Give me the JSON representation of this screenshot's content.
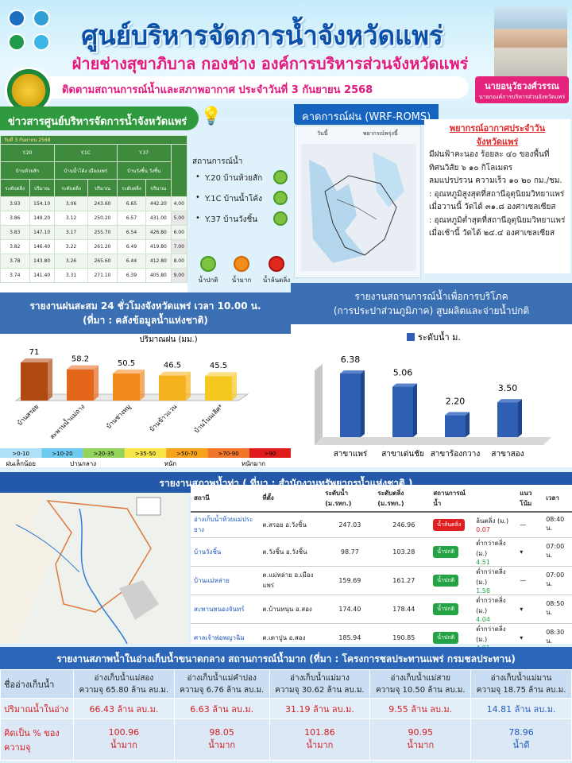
{
  "header": {
    "title": "ศูนย์บริหารจัดการน้ำจังหวัดแพร่",
    "subtitle": "ฝ่ายช่างสุขาภิบาล กองช่าง องค์การบริหารส่วนจังหวัดแพร่",
    "date_line": "ติดตามสถานการณ์น้ำและสภาพอากาศ ประจำวันที่ 3 กันยายน 2568",
    "person_name": "นายอนุวัธวงศ์วรรณ",
    "person_title": "นายกองค์การบริหารส่วนจังหวัดแพร่"
  },
  "news": {
    "header": "ข่าวสารศูนย์บริหารจัดการน้ำจังหวัดแพร่",
    "table_date": "วันที่ 3 กันยายน 2568",
    "columns": [
      "Y.20",
      "Y.1C",
      "Y.37"
    ],
    "col_names": [
      "บ้านห้วยสัก",
      "บ้านน้ำโค้ง เมืองแพร่",
      "บ้านวังชิ้น วังชิ้น"
    ],
    "sub_headers": [
      "ระดับตลิ่ง",
      "ปริมาณ",
      "ระดับตลิ่ง",
      "ปริมาณ",
      "ระดับตลิ่ง",
      "ปริมาณ"
    ],
    "rows": [
      [
        "3.93",
        "154.10",
        "3.06",
        "243.60",
        "6.65",
        "442.20",
        "4.00"
      ],
      [
        "3.86",
        "149.20",
        "3.12",
        "250.20",
        "6.57",
        "431.00",
        "5.00"
      ],
      [
        "3.83",
        "147.10",
        "3.17",
        "255.70",
        "6.54",
        "426.80",
        "6.00"
      ],
      [
        "3.82",
        "146.40",
        "3.22",
        "261.20",
        "6.49",
        "419.80",
        "7.00"
      ],
      [
        "3.78",
        "143.80",
        "3.26",
        "265.60",
        "6.44",
        "412.80",
        "8.00"
      ],
      [
        "3.74",
        "141.40",
        "3.31",
        "271.10",
        "6.39",
        "405.80",
        "9.00"
      ]
    ]
  },
  "status": {
    "header": "สถานการณ์น้ำ",
    "items": [
      {
        "label": "Y.20 บ้านห้วยสัก",
        "color": "#7fc241"
      },
      {
        "label": "Y.1C บ้านน้ำโค้ง",
        "color": "#7fc241"
      },
      {
        "label": "Y.37 บ้านวังชิ้น",
        "color": "#7fc241"
      }
    ],
    "legend": [
      {
        "label": "น้ำปกติ",
        "color": "#7fc241"
      },
      {
        "label": "น้ำมาก",
        "color": "#f28c1c"
      },
      {
        "label": "น้ำล้นตลิ่ง",
        "color": "#e0281e"
      }
    ]
  },
  "wrf": {
    "header": "คาดการณ์ฝน (WRF-ROMS)",
    "tab1": "วันนี้",
    "tab2": "พยากรณ์พรุ่งนี้"
  },
  "forecast": {
    "title1": "พยากรณ์อากาศประจำวัน",
    "title2": "จังหวัดแพร่",
    "lines": [
      "มีฝนฟ้าคะนอง ร้อยละ ๔๐ ของพื้นที่",
      "ทิศนวิสัย ๖ ๑๐ กิโลเมตร",
      "ลมแปรปรวน ความเร็ว ๑๐ ๒๐ กม./ชม.",
      ": อุณหภูมิสูงสุดที่สถานีอุตุนิยมวิทยาแพร่",
      "เมื่อวานนี้ วัดได้ ๓๑.๘ องศาเซลเซียส",
      ": อุณหภูมิต่ำสุดที่สถานีอุตุนิยมวิทยาแพร่",
      "เมื่อเช้านี้ วัดได้ ๒๔.๔ องศาเซลเซียส"
    ]
  },
  "rain": {
    "header1": "รายงานฝนสะสม 24 ชั่วโมงจังหวัดแพร่ เวลา 10.00 น.",
    "header2": "(ที่มา : คลังข้อมูลน้ำแห่งชาติ)",
    "scale": [
      {
        "label": ">0-10",
        "color": "#aee0f7"
      },
      {
        "label": ">10-20",
        "color": "#6fcaf0"
      },
      {
        "label": ">20-35",
        "color": "#93d35b"
      },
      {
        "label": ">35-50",
        "color": "#f8e548"
      },
      {
        "label": ">50-70",
        "color": "#f7a21c"
      },
      {
        "label": ">70-90",
        "color": "#f0762a"
      },
      {
        "label": ">90",
        "color": "#e01b1b"
      }
    ],
    "scale_words": [
      "ฝนเล็กน้อย",
      "ปานกลาง",
      "หนัก",
      "หนักมาก"
    ]
  },
  "usage": {
    "header1": "รายงานสถานการณ์น้ำเพื่อการบริโภค",
    "header2": "(การประปาส่วนภูมิภาค) สูบผลิตและจ่ายน้ำปกติ"
  },
  "chart_data": [
    {
      "type": "bar",
      "title": "ปริมาณฝน (มม.)",
      "categories": [
        "บ้านสรอย",
        "สะพานน้ำแม่ถาง",
        "บ้านช่างหมู",
        "บ้านข้าวแวน",
        "บ้านโนนเลิศ*"
      ],
      "values": [
        71,
        58.2,
        50.5,
        46.5,
        45.5
      ],
      "colors": [
        "#b14a12",
        "#e3661a",
        "#f2891c",
        "#f5b21e",
        "#f5c81e"
      ]
    },
    {
      "type": "bar",
      "legend": "ระดับน้ำ ม.",
      "categories": [
        "สาขาแพร่",
        "สาขาเด่นชัย",
        "สาขาร้องกวาง",
        "สาขาสอง"
      ],
      "values": [
        6.38,
        5.06,
        2.2,
        3.5
      ],
      "value_labels": [
        "6.38",
        "5.06",
        "2.20",
        "3.50"
      ],
      "color": "#2e5fb3"
    }
  ],
  "river": {
    "header": "รายงานสภาพน้ำท่า ( ที่มา : สำนักงานทรัพยากรน้ำแห่งชาติ )",
    "cols": [
      "สถานี",
      "ที่ตั้ง",
      "ระดับน้ำ (ม.รทก.)",
      "ระดับตลิ่ง (ม.รทก.)",
      "สถานการณ์น้ำ",
      "",
      "แนวโน้ม",
      "เวลา"
    ],
    "rows": [
      {
        "station": "อ่างเก็บน้ำห้วยแม่ประยาง",
        "loc": "ต.สรอย อ.วังชิ้น",
        "level": "247.03",
        "bank": "246.96",
        "status": "น้ำล้นตลิ่ง",
        "status_type": "red",
        "diff_label": "ล้นตลิ่ง (ม.)",
        "diff": "0.07",
        "diff_type": "tr1",
        "trend": "—",
        "time": "08:40 น."
      },
      {
        "station": "บ้านวังชิ้น",
        "loc": "ต.วังชิ้น อ.วังชิ้น",
        "level": "98.77",
        "bank": "103.28",
        "status": "น้ำปกติ",
        "status_type": "green",
        "diff_label": "ต่ำกว่าตลิ่ง (ม.)",
        "diff": "4.51",
        "diff_type": "tr2",
        "trend": "▾",
        "time": "07:00 น."
      },
      {
        "station": "บ้านแม่หล่าย",
        "loc": "ต.แม่หล่าย อ.เมืองแพร่",
        "level": "159.69",
        "bank": "161.27",
        "status": "น้ำปกติ",
        "status_type": "green",
        "diff_label": "ต่ำกว่าตลิ่ง (ม.)",
        "diff": "1.58",
        "diff_type": "tr2",
        "trend": "—",
        "time": "07:00 น."
      },
      {
        "station": "สะพานหนองจันทร์",
        "loc": "ต.บ้านหนุน อ.สอง",
        "level": "174.40",
        "bank": "178.44",
        "status": "น้ำปกติ",
        "status_type": "green",
        "diff_label": "ต่ำกว่าตลิ่ง (ม.)",
        "diff": "4.04",
        "diff_type": "tr2",
        "trend": "▾",
        "time": "08:50 น."
      },
      {
        "station": "ศาลเจ้าพ่อพญาฉิม",
        "loc": "ต.เตาปูน อ.สอง",
        "level": "185.94",
        "bank": "190.85",
        "status": "น้ำปกติ",
        "status_type": "green",
        "diff_label": "ต่ำกว่าตลิ่ง (ม.)",
        "diff": "4.91",
        "diff_type": "tr2",
        "trend": "▾",
        "time": "08:30 น."
      }
    ]
  },
  "reservoir": {
    "header": "รายงานสภาพน้ำในอ่างเก็บน้ำขนาดกลาง สถานการณ์น้ำมาก (ที่มา : โครงการชลประทานแพร่ กรมชลประทาน)",
    "row_headers": [
      "ชื่ออ่างเก็บน้ำ",
      "ปริมาณน้ำในอ่าง",
      "คิดเป็น % ของความจุ"
    ],
    "items": [
      {
        "name": "อ่างเก็บน้ำแม่สอง",
        "cap": "ความจุ 65.80 ล้าน ลบ.ม.",
        "volume": "66.43 ล้าน ลบ.ม.",
        "pct": "100.96",
        "state": "น้ำมาก",
        "blue": false
      },
      {
        "name": "อ่างเก็บน้ำแม่คำปอง",
        "cap": "ความจุ 6.76 ล้าน ลบ.ม.",
        "volume": "6.63 ล้าน ลบ.ม.",
        "pct": "98.05",
        "state": "น้ำมาก",
        "blue": false
      },
      {
        "name": "อ่างเก็บน้ำแม่มาง",
        "cap": "ความจุ 30.62 ล้าน ลบ.ม.",
        "volume": "31.19 ล้าน ลบ.ม.",
        "pct": "101.86",
        "state": "น้ำมาก",
        "blue": false
      },
      {
        "name": "อ่างเก็บน้ำแม่สาย",
        "cap": "ความจุ 10.50 ล้าน ลบ.ม.",
        "volume": "9.55 ล้าน ลบ.ม.",
        "pct": "90.95",
        "state": "น้ำมาก",
        "blue": false
      },
      {
        "name": "อ่างเก็บน้ำแม่มาน",
        "cap": "ความจุ 18.75 ล้าน ลบ.ม.",
        "volume": "14.81 ล้าน ลบ.ม.",
        "pct": "78.96",
        "state": "น้ำดี",
        "blue": true
      }
    ]
  }
}
